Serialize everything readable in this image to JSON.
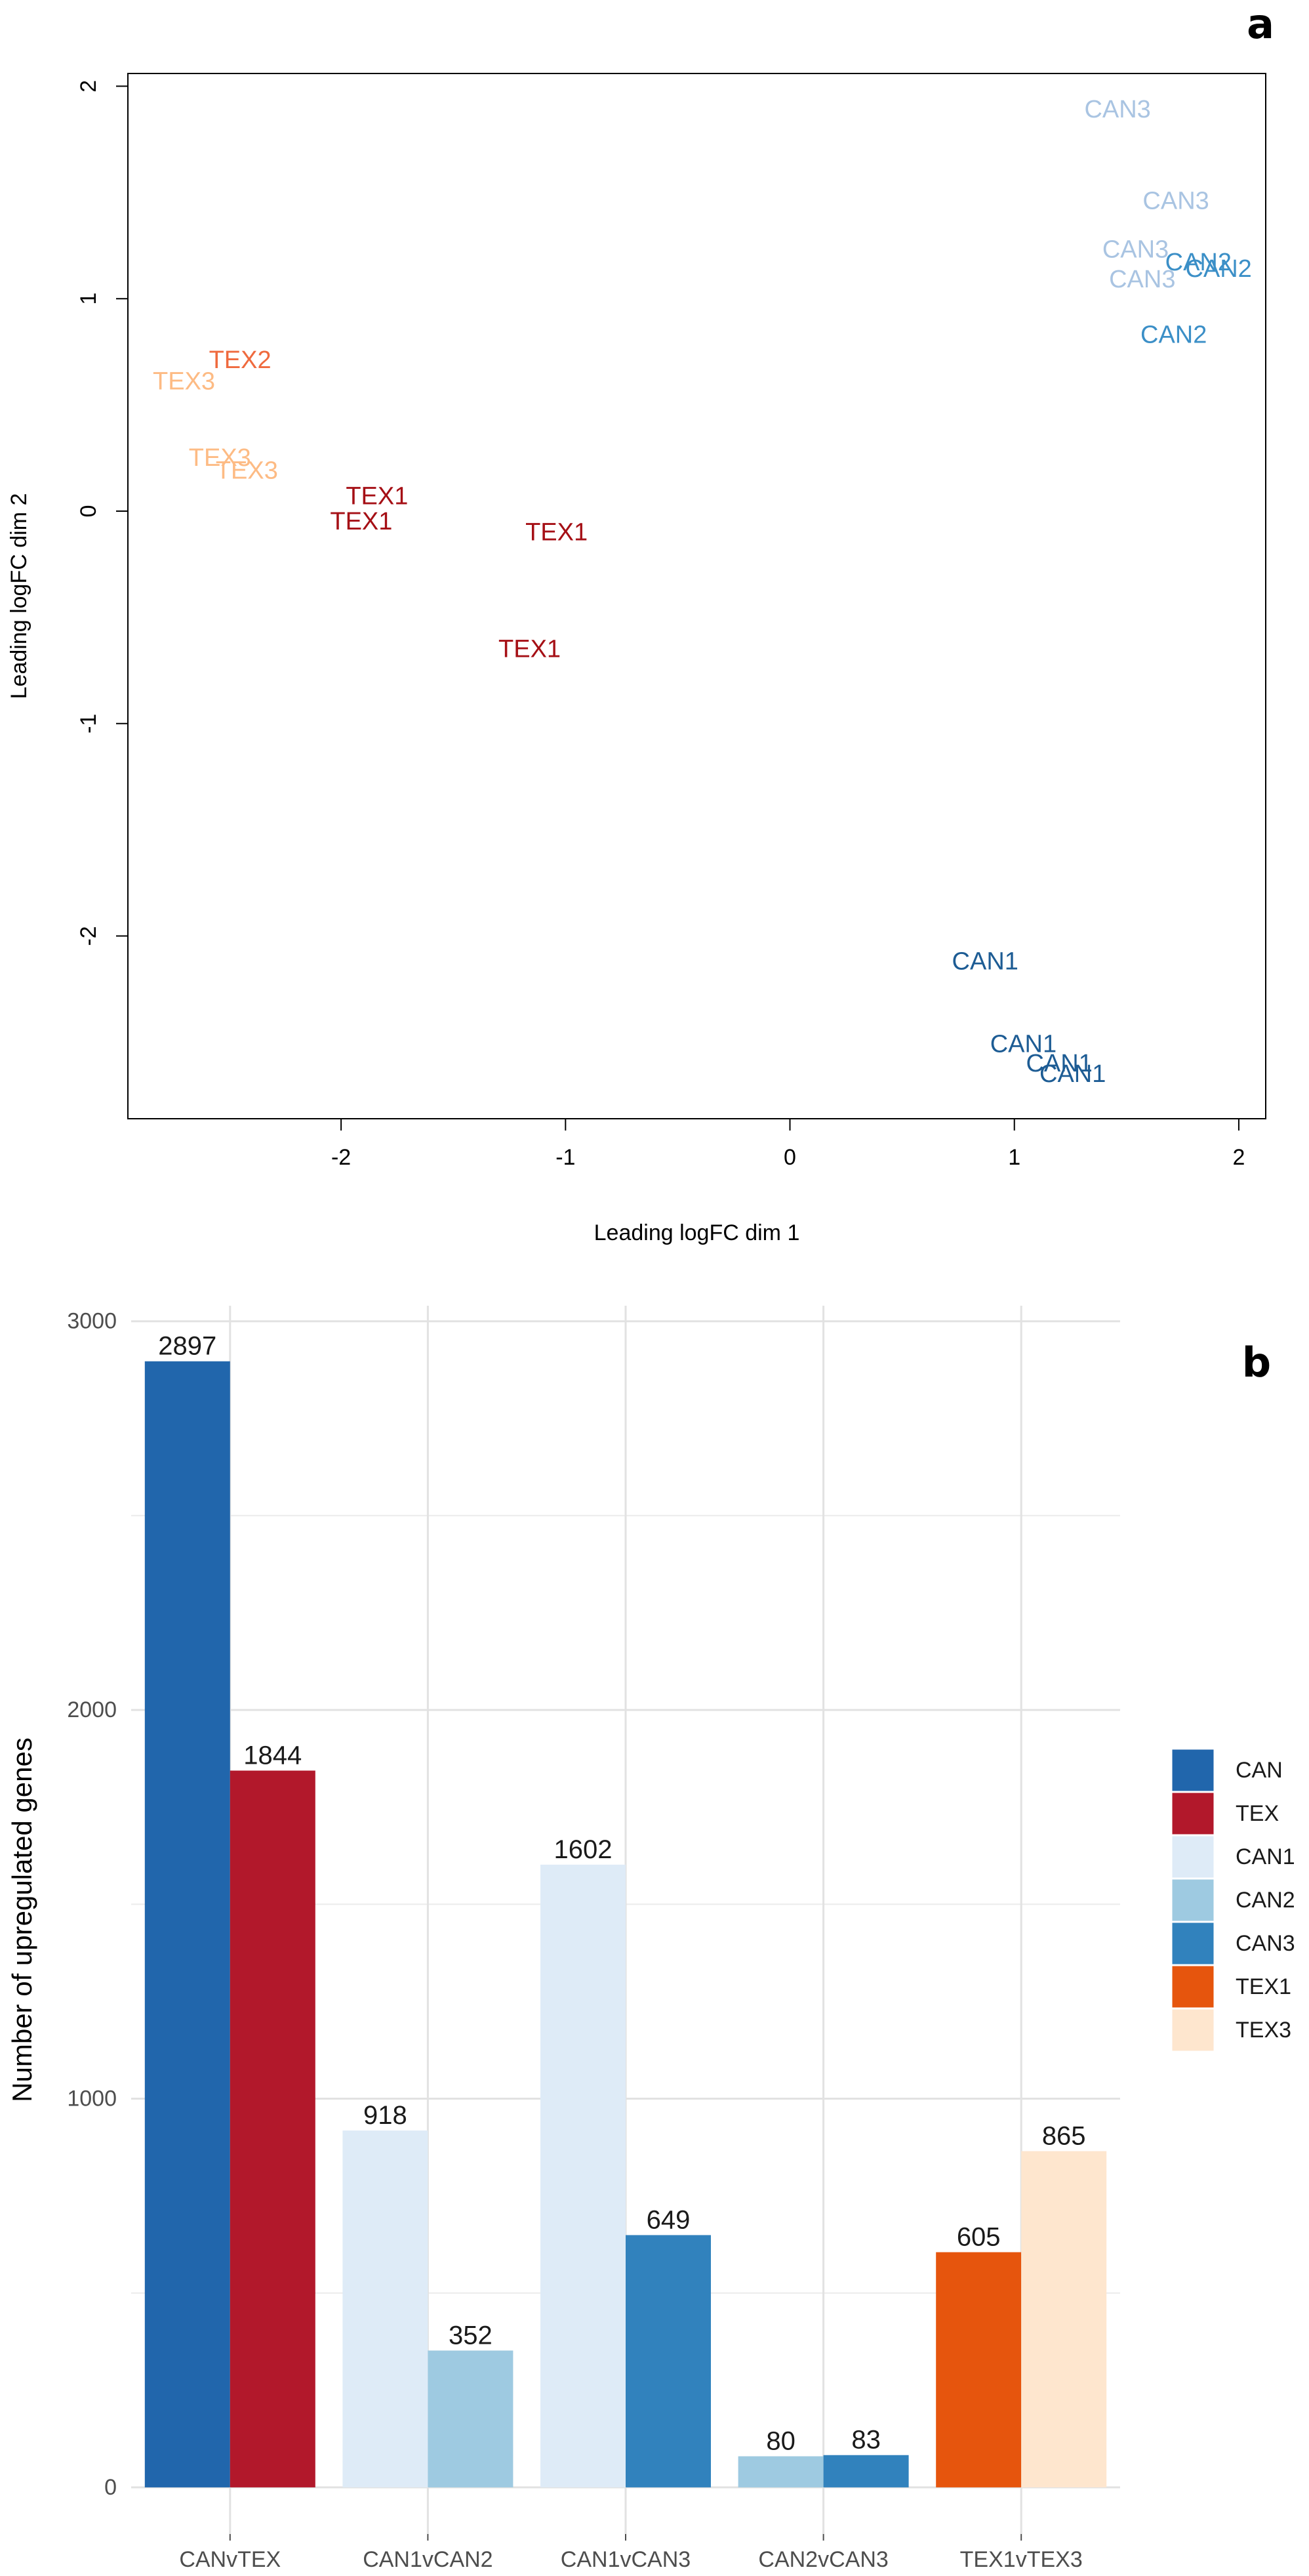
{
  "chart_data": [
    {
      "type": "scatter",
      "panel_label": "a",
      "xlabel": "Leading logFC dim 1",
      "ylabel": "Leading logFC dim 2",
      "xlim": [
        -2.95,
        2.12
      ],
      "ylim": [
        -2.86,
        2.06
      ],
      "xticks": [
        "-2",
        "-1",
        "0",
        "1",
        "2"
      ],
      "yticks": [
        "-2",
        "-1",
        "0",
        "1",
        "2"
      ],
      "xtick_values": [
        -2,
        -1,
        0,
        1,
        2
      ],
      "ytick_values": [
        -2,
        -1,
        0,
        1,
        2
      ],
      "grid": false,
      "colors": {
        "CAN1": "#1d5c94",
        "CAN2": "#3b8fc7",
        "CAN3": "#a9c4e2",
        "TEX1": "#a50f15",
        "TEX2": "#ef6a3e",
        "TEX3": "#fdbb84"
      },
      "points": [
        {
          "label": "CAN3",
          "x": 1.46,
          "y": 1.89
        },
        {
          "label": "CAN3",
          "x": 1.72,
          "y": 1.46
        },
        {
          "label": "CAN3",
          "x": 1.54,
          "y": 1.23
        },
        {
          "label": "CAN3",
          "x": 1.57,
          "y": 1.09
        },
        {
          "label": "CAN2",
          "x": 1.82,
          "y": 1.17
        },
        {
          "label": "CAN2",
          "x": 1.91,
          "y": 1.14
        },
        {
          "label": "CAN2",
          "x": 1.71,
          "y": 0.83
        },
        {
          "label": "TEX2",
          "x": -2.45,
          "y": 0.71
        },
        {
          "label": "TEX3",
          "x": -2.7,
          "y": 0.61
        },
        {
          "label": "TEX3",
          "x": -2.54,
          "y": 0.25
        },
        {
          "label": "TEX3",
          "x": -2.42,
          "y": 0.19
        },
        {
          "label": "TEX1",
          "x": -1.84,
          "y": 0.07
        },
        {
          "label": "TEX1",
          "x": -1.91,
          "y": -0.05
        },
        {
          "label": "TEX1",
          "x": -1.04,
          "y": -0.1
        },
        {
          "label": "TEX1",
          "x": -1.16,
          "y": -0.65
        },
        {
          "label": "CAN1",
          "x": 0.87,
          "y": -2.12
        },
        {
          "label": "CAN1",
          "x": 1.04,
          "y": -2.51
        },
        {
          "label": "CAN1",
          "x": 1.2,
          "y": -2.6
        },
        {
          "label": "CAN1",
          "x": 1.26,
          "y": -2.65
        }
      ]
    },
    {
      "type": "bar",
      "panel_label": "b",
      "ylabel": "Number of upregulated genes",
      "xlabel": "",
      "ylim": [
        -120,
        3040
      ],
      "yticks": [
        "0",
        "1000",
        "2000",
        "3000"
      ],
      "ytick_values": [
        0,
        1000,
        2000,
        3000
      ],
      "minor_gridlines": [
        500,
        1500,
        2500
      ],
      "grid": true,
      "legend_position": "right",
      "legend": [
        {
          "name": "CAN",
          "color": "#2166ac"
        },
        {
          "name": "TEX",
          "color": "#b2182b"
        },
        {
          "name": "CAN1",
          "color": "#deebf7"
        },
        {
          "name": "CAN2",
          "color": "#9ecae1"
        },
        {
          "name": "CAN3",
          "color": "#3182bd"
        },
        {
          "name": "TEX1",
          "color": "#e6550d"
        },
        {
          "name": "TEX3",
          "color": "#fee6ce"
        }
      ],
      "categories": [
        "CANvTEX",
        "CAN1vCAN2",
        "CAN1vCAN3",
        "CAN2vCAN3",
        "TEX1vTEX3"
      ],
      "groups": [
        {
          "category": "CANvTEX",
          "bars": [
            {
              "series": "CAN",
              "value": 2897
            },
            {
              "series": "TEX",
              "value": 1844
            }
          ]
        },
        {
          "category": "CAN1vCAN2",
          "bars": [
            {
              "series": "CAN1",
              "value": 918
            },
            {
              "series": "CAN2",
              "value": 352
            }
          ]
        },
        {
          "category": "CAN1vCAN3",
          "bars": [
            {
              "series": "CAN1",
              "value": 1602
            },
            {
              "series": "CAN3",
              "value": 649
            }
          ]
        },
        {
          "category": "CAN2vCAN3",
          "bars": [
            {
              "series": "CAN2",
              "value": 80
            },
            {
              "series": "CAN3",
              "value": 83
            }
          ]
        },
        {
          "category": "TEX1vTEX3",
          "bars": [
            {
              "series": "TEX1",
              "value": 605
            },
            {
              "series": "TEX3",
              "value": 865
            }
          ]
        }
      ]
    }
  ]
}
